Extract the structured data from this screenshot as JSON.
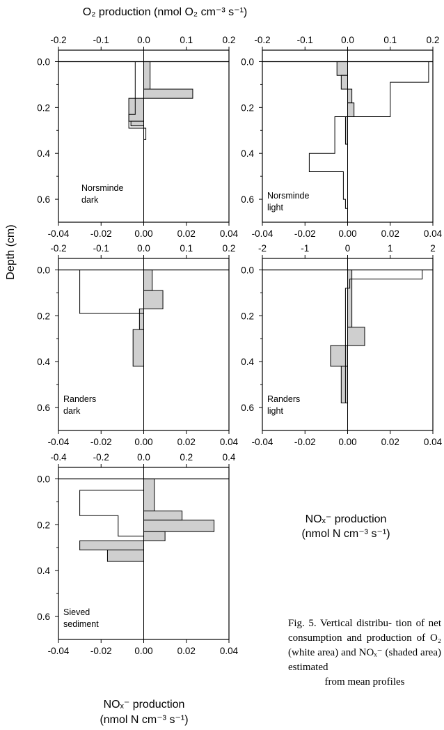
{
  "figure": {
    "top_axis_title": "O₂ production (nmol O₂ cm⁻³ s⁻¹)",
    "y_axis_title": "Depth (cm)",
    "bottom_axis_title_right": {
      "line1": "NOₓ⁻ production",
      "line2": "(nmol N cm⁻³ s⁻¹)"
    },
    "bottom_axis_title_left": {
      "line1": "NOₓ⁻ production",
      "line2": "(nmol N cm⁻³ s⁻¹)"
    },
    "caption": {
      "lines": [
        "Fig. 5. Vertical distribu-",
        "tion of net consumption",
        "and production of O₂",
        "(white area) and NOₓ⁻",
        "(shaded area) estimated"
      ],
      "last_line": "from mean profiles"
    }
  },
  "colors": {
    "shaded": "#cfcfcf",
    "line": "#000000",
    "background": "#ffffff"
  },
  "chart_data": [
    {
      "type": "step-profile",
      "label": [
        "Norsminde",
        "dark"
      ],
      "ylim": [
        0.7,
        -0.05
      ],
      "y_ticks": [
        0.0,
        0.2,
        0.4,
        0.6
      ],
      "y_tick_labels": [
        "0.0",
        "0.2",
        "0.4",
        "0.6"
      ],
      "top_axis": {
        "lim": [
          -0.2,
          0.2
        ],
        "ticks": [
          "-0.2",
          "-0.1",
          "0.0",
          "0.1",
          "0.2"
        ]
      },
      "bottom_axis": {
        "lim": [
          -0.04,
          0.04
        ],
        "ticks": [
          "-0.04",
          "-0.02",
          "0.00",
          "0.02",
          "0.04"
        ]
      },
      "o2_profile": [
        {
          "top": 0.0,
          "bottom": 0.04,
          "value": -0.02
        },
        {
          "top": 0.04,
          "bottom": 0.23,
          "value": -0.02
        },
        {
          "top": 0.23,
          "bottom": 0.29,
          "value": -0.035
        },
        {
          "top": 0.29,
          "bottom": 0.34,
          "value": 0.005
        }
      ],
      "nox_profile": [
        {
          "top": 0.0,
          "bottom": 0.12,
          "value": 0.003
        },
        {
          "top": 0.12,
          "bottom": 0.16,
          "value": 0.023
        },
        {
          "top": 0.16,
          "bottom": 0.26,
          "value": -0.007
        },
        {
          "top": 0.26,
          "bottom": 0.28,
          "value": -0.006
        }
      ]
    },
    {
      "type": "step-profile",
      "label": [
        "Norsminde",
        "light"
      ],
      "ylim": [
        0.7,
        -0.05
      ],
      "y_ticks": [
        0.0,
        0.2,
        0.4,
        0.6
      ],
      "y_tick_labels": [
        "0.0",
        "0.2",
        "0.4",
        "0.6"
      ],
      "top_axis": {
        "lim": [
          -0.2,
          0.2
        ],
        "ticks": [
          "-0.2",
          "-0.1",
          "0.0",
          "0.1",
          "0.2"
        ]
      },
      "bottom_axis": {
        "lim": [
          -0.04,
          0.04
        ],
        "ticks": [
          "-0.04",
          "-0.02",
          "0.00",
          "0.02",
          "0.04"
        ]
      },
      "o2_profile": [
        {
          "top": 0.0,
          "bottom": 0.09,
          "value": 0.19
        },
        {
          "top": 0.09,
          "bottom": 0.24,
          "value": 0.1
        },
        {
          "top": 0.24,
          "bottom": 0.4,
          "value": -0.03
        },
        {
          "top": 0.4,
          "bottom": 0.48,
          "value": -0.09
        },
        {
          "top": 0.48,
          "bottom": 0.6,
          "value": -0.01
        },
        {
          "top": 0.6,
          "bottom": 0.64,
          "value": -0.005
        }
      ],
      "nox_profile": [
        {
          "top": 0.0,
          "bottom": 0.06,
          "value": -0.005
        },
        {
          "top": 0.06,
          "bottom": 0.12,
          "value": -0.003
        },
        {
          "top": 0.12,
          "bottom": 0.18,
          "value": 0.002
        },
        {
          "top": 0.18,
          "bottom": 0.24,
          "value": 0.003
        },
        {
          "top": 0.24,
          "bottom": 0.36,
          "value": -0.001
        }
      ]
    },
    {
      "type": "step-profile",
      "label": [
        "Randers",
        "dark"
      ],
      "ylim": [
        0.7,
        -0.05
      ],
      "y_ticks": [
        0.0,
        0.2,
        0.4,
        0.6
      ],
      "y_tick_labels": [
        "0.0",
        "0.2",
        "0.4",
        "0.6"
      ],
      "top_axis": {
        "lim": [
          -0.2,
          0.2
        ],
        "ticks": [
          "-0.2",
          "-0.1",
          "0.0",
          "0.1",
          "0.2"
        ]
      },
      "bottom_axis": {
        "lim": [
          -0.04,
          0.04
        ],
        "ticks": [
          "-0.04",
          "-0.02",
          "0.00",
          "0.02",
          "0.04"
        ]
      },
      "o2_profile": [
        {
          "top": 0.0,
          "bottom": 0.19,
          "value": -0.15
        }
      ],
      "nox_profile": [
        {
          "top": 0.0,
          "bottom": 0.09,
          "value": 0.004
        },
        {
          "top": 0.09,
          "bottom": 0.17,
          "value": 0.009
        },
        {
          "top": 0.17,
          "bottom": 0.26,
          "value": -0.002
        },
        {
          "top": 0.26,
          "bottom": 0.42,
          "value": -0.005
        }
      ]
    },
    {
      "type": "step-profile",
      "label": [
        "Randers",
        "light"
      ],
      "ylim": [
        0.7,
        -0.05
      ],
      "y_ticks": [
        0.0,
        0.2,
        0.4,
        0.6
      ],
      "y_tick_labels": [
        "0.0",
        "0.2",
        "0.4",
        "0.6"
      ],
      "top_axis": {
        "lim": [
          -2,
          2
        ],
        "ticks": [
          "-2",
          "-1",
          "0",
          "1",
          "2"
        ]
      },
      "bottom_axis": {
        "lim": [
          -0.04,
          0.04
        ],
        "ticks": [
          "-0.04",
          "-0.02",
          "0.00",
          "0.02",
          "0.04"
        ]
      },
      "o2_profile": [
        {
          "top": 0.0,
          "bottom": 0.04,
          "value": 1.75
        },
        {
          "top": 0.04,
          "bottom": 0.08,
          "value": 0.05
        },
        {
          "top": 0.08,
          "bottom": 0.58,
          "value": -0.05
        }
      ],
      "nox_profile": [
        {
          "top": 0.0,
          "bottom": 0.25,
          "value": 0.002
        },
        {
          "top": 0.25,
          "bottom": 0.33,
          "value": 0.008
        },
        {
          "top": 0.33,
          "bottom": 0.42,
          "value": -0.008
        },
        {
          "top": 0.42,
          "bottom": 0.58,
          "value": -0.003
        }
      ]
    },
    {
      "type": "step-profile",
      "label": [
        "Sieved",
        "sediment"
      ],
      "ylim": [
        0.7,
        -0.05
      ],
      "y_ticks": [
        0.0,
        0.2,
        0.4,
        0.6
      ],
      "y_tick_labels": [
        "0.0",
        "0.2",
        "0.4",
        "0.6"
      ],
      "top_axis": {
        "lim": [
          -0.4,
          0.4
        ],
        "ticks": [
          "-0.4",
          "-0.2",
          "0.0",
          "0.2",
          "0.4"
        ]
      },
      "bottom_axis": {
        "lim": [
          -0.04,
          0.04
        ],
        "ticks": [
          "-0.04",
          "-0.02",
          "0.00",
          "0.02",
          "0.04"
        ]
      },
      "o2_profile": [
        {
          "top": 0.0,
          "bottom": 0.05,
          "value": 0.0
        },
        {
          "top": 0.05,
          "bottom": 0.16,
          "value": -0.3
        },
        {
          "top": 0.16,
          "bottom": 0.25,
          "value": -0.12
        },
        {
          "top": 0.25,
          "bottom": 0.27,
          "value": 0.0
        }
      ],
      "nox_profile": [
        {
          "top": 0.0,
          "bottom": 0.14,
          "value": 0.005
        },
        {
          "top": 0.14,
          "bottom": 0.18,
          "value": 0.018
        },
        {
          "top": 0.18,
          "bottom": 0.23,
          "value": 0.033
        },
        {
          "top": 0.23,
          "bottom": 0.27,
          "value": 0.01
        },
        {
          "top": 0.27,
          "bottom": 0.31,
          "value": -0.03
        },
        {
          "top": 0.31,
          "bottom": 0.36,
          "value": -0.017
        }
      ]
    }
  ]
}
